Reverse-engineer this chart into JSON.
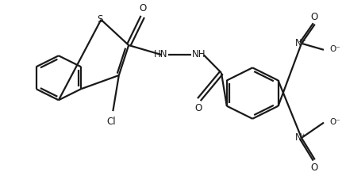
{
  "bg_color": "#ffffff",
  "line_color": "#1a1a1a",
  "line_width": 1.6,
  "font_size_label": 8.5,
  "font_size_small": 7.5,
  "fig_width": 4.26,
  "fig_height": 2.26,
  "dpi": 100
}
